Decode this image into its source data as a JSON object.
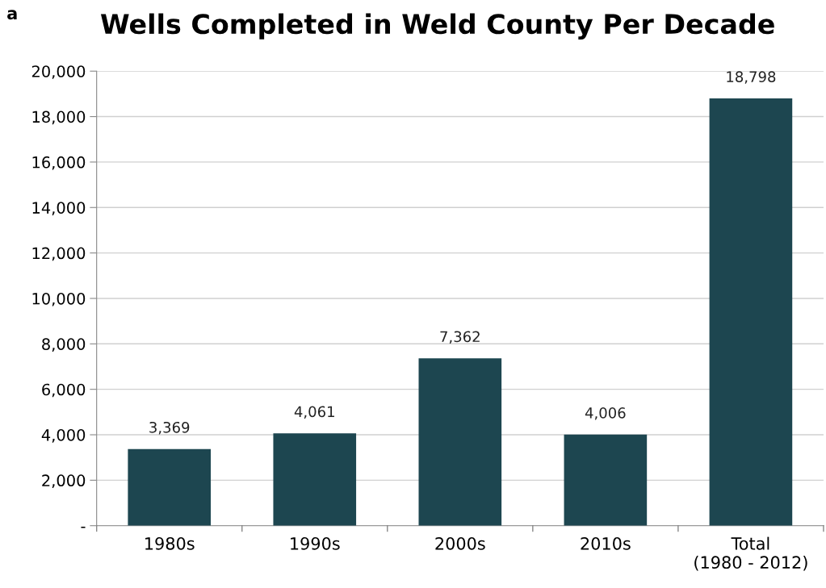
{
  "chart_data": {
    "type": "bar",
    "title": "Wells Completed in Weld County Per Decade",
    "categories": [
      "1980s",
      "1990s",
      "2000s",
      "2010s",
      "Total\n(1980 - 2012)"
    ],
    "values": [
      3369,
      4061,
      7362,
      4006,
      18798
    ],
    "value_labels": [
      "3,369",
      "4,061",
      "7,362",
      "4,006",
      "18,798"
    ],
    "color": "#1d4650",
    "ylim": [
      0,
      20000
    ],
    "yticks": [
      {
        "value": 0,
        "label": "-"
      },
      {
        "value": 2000,
        "label": "2,000"
      },
      {
        "value": 4000,
        "label": "4,000"
      },
      {
        "value": 6000,
        "label": "6,000"
      },
      {
        "value": 8000,
        "label": "8,000"
      },
      {
        "value": 10000,
        "label": "10,000"
      },
      {
        "value": 12000,
        "label": "12,000"
      },
      {
        "value": 14000,
        "label": "14,000"
      },
      {
        "value": 16000,
        "label": "16,000"
      },
      {
        "value": 18000,
        "label": "18,000"
      },
      {
        "value": 20000,
        "label": "20,000"
      }
    ],
    "grid": "y",
    "annotations": [
      "a"
    ]
  }
}
